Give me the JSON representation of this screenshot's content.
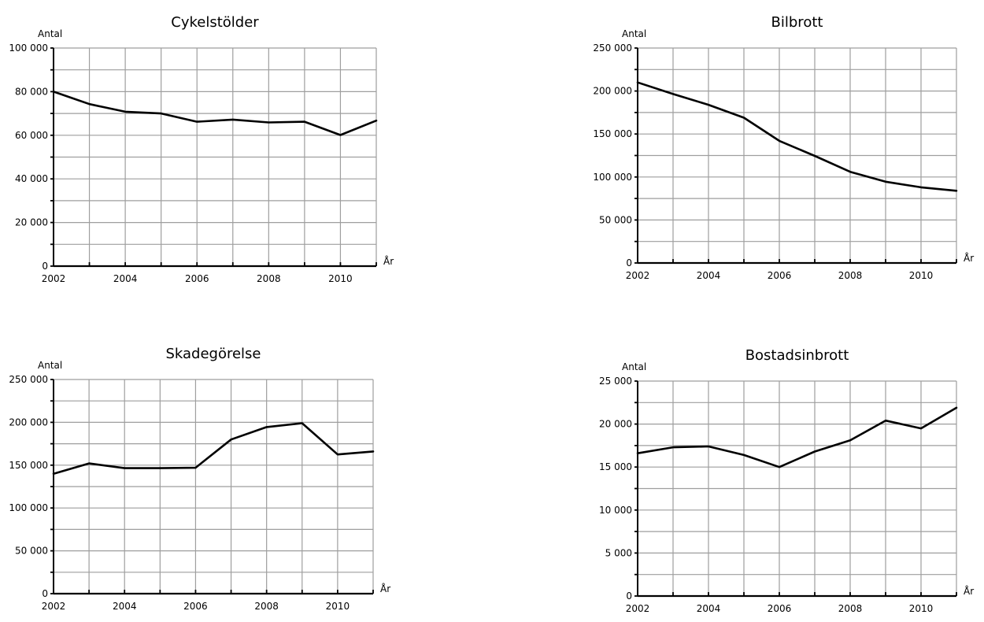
{
  "chart_data": [
    {
      "type": "line",
      "title": "Cykelstölder",
      "ylabel": "Antal",
      "xlabel": "År",
      "x": [
        2002,
        2003,
        2004,
        2005,
        2006,
        2007,
        2008,
        2009,
        2010,
        2011
      ],
      "series": [
        {
          "values": [
            80000,
            74300,
            70800,
            70000,
            66200,
            67200,
            65900,
            66200,
            60100,
            66700
          ]
        }
      ],
      "xlim": [
        2002,
        2011
      ],
      "ylim": [
        0,
        100000
      ],
      "xticks": [
        2002,
        2004,
        2006,
        2008,
        2010
      ],
      "xtick_labels": [
        "2002",
        "2004",
        "2006",
        "2008",
        "2010"
      ],
      "yticks": [
        0,
        20000,
        40000,
        60000,
        80000,
        100000
      ],
      "ytick_labels": [
        "0",
        "20 000",
        "40 000",
        "60 000",
        "80 000",
        "100 000"
      ],
      "grid": true
    },
    {
      "type": "line",
      "title": "Bilbrott",
      "ylabel": "Antal",
      "xlabel": "År",
      "x": [
        2002,
        2003,
        2004,
        2005,
        2006,
        2007,
        2008,
        2009,
        2010,
        2011
      ],
      "series": [
        {
          "values": [
            210000,
            196500,
            184000,
            169000,
            142000,
            124500,
            106000,
            94500,
            88000,
            84000
          ]
        }
      ],
      "xlim": [
        2002,
        2011
      ],
      "ylim": [
        0,
        250000
      ],
      "xticks": [
        2002,
        2004,
        2006,
        2008,
        2010
      ],
      "xtick_labels": [
        "2002",
        "2004",
        "2006",
        "2008",
        "2010"
      ],
      "yticks": [
        0,
        50000,
        100000,
        150000,
        200000,
        250000
      ],
      "ytick_labels": [
        "0",
        "50 000",
        "100 000",
        "150 000",
        "200 000",
        "250 000"
      ],
      "grid": true
    },
    {
      "type": "line",
      "title": "Skadegörelse",
      "ylabel": "Antal",
      "xlabel": "År",
      "x": [
        2002,
        2003,
        2004,
        2005,
        2006,
        2007,
        2008,
        2009,
        2010,
        2011
      ],
      "series": [
        {
          "values": [
            140000,
            152000,
            146500,
            146500,
            147000,
            180000,
            194500,
            199000,
            162500,
            166000
          ]
        }
      ],
      "xlim": [
        2002,
        2011
      ],
      "ylim": [
        0,
        250000
      ],
      "xticks": [
        2002,
        2004,
        2006,
        2008,
        2010
      ],
      "xtick_labels": [
        "2002",
        "2004",
        "2006",
        "2008",
        "2010"
      ],
      "yticks": [
        0,
        50000,
        100000,
        150000,
        200000,
        250000
      ],
      "ytick_labels": [
        "0",
        "50 000",
        "100 000",
        "150 000",
        "200 000",
        "250 000"
      ],
      "grid": true
    },
    {
      "type": "line",
      "title": "Bostadsinbrott",
      "ylabel": "Antal",
      "xlabel": "År",
      "x": [
        2002,
        2003,
        2004,
        2005,
        2006,
        2007,
        2008,
        2009,
        2010,
        2011
      ],
      "series": [
        {
          "values": [
            16600,
            17300,
            17400,
            16400,
            15000,
            16800,
            18100,
            20400,
            19500,
            21900
          ]
        }
      ],
      "xlim": [
        2002,
        2011
      ],
      "ylim": [
        0,
        25000
      ],
      "xticks": [
        2002,
        2004,
        2006,
        2008,
        2010
      ],
      "xtick_labels": [
        "2002",
        "2004",
        "2006",
        "2008",
        "2010"
      ],
      "yticks": [
        0,
        5000,
        10000,
        15000,
        20000,
        25000
      ],
      "ytick_labels": [
        "0",
        "5 000",
        "10 000",
        "15 000",
        "20 000",
        "25 000"
      ],
      "grid": true
    }
  ]
}
